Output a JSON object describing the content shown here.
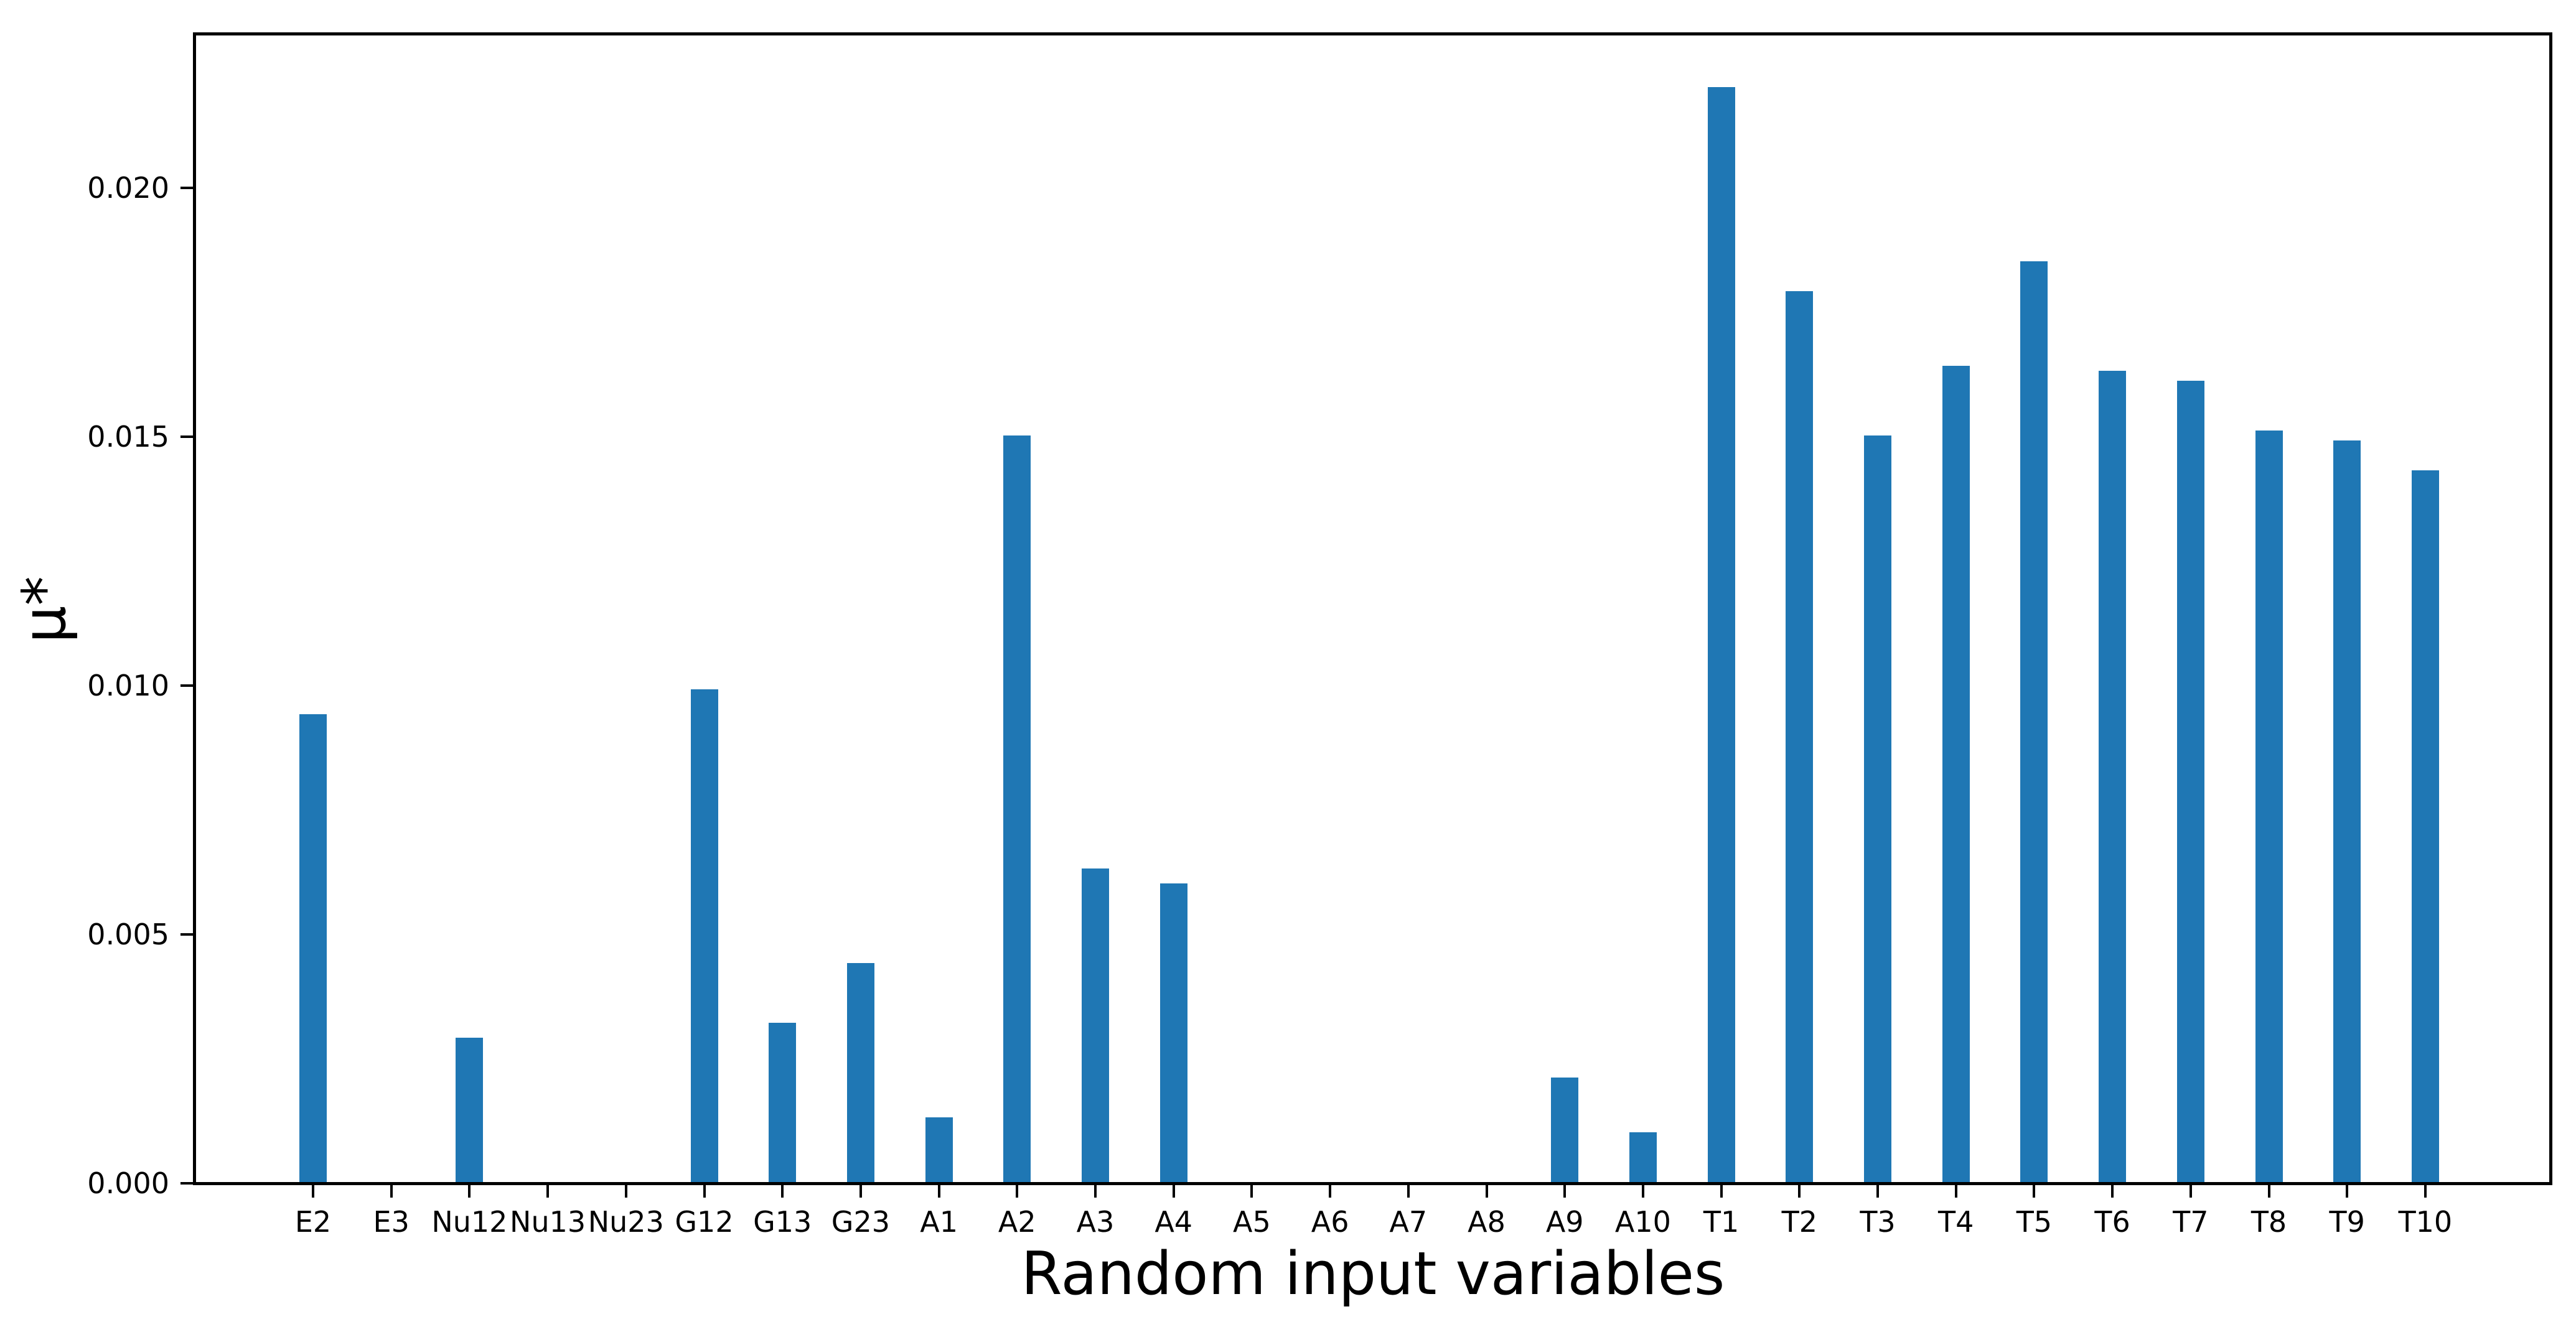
{
  "chart_data": {
    "type": "bar",
    "title": "",
    "xlabel": "Random input variables",
    "ylabel": "μ*",
    "categories": [
      "E2",
      "E3",
      "Nu12",
      "Nu13",
      "Nu23",
      "G12",
      "G13",
      "G23",
      "A1",
      "A2",
      "A3",
      "A4",
      "A5",
      "A6",
      "A7",
      "A8",
      "A9",
      "A10",
      "T1",
      "T2",
      "T3",
      "T4",
      "T5",
      "T6",
      "T7",
      "T8",
      "T9",
      "T10"
    ],
    "values": [
      0.0094,
      0,
      0.0029,
      0,
      0,
      0.0099,
      0.0032,
      0.0044,
      0.0013,
      0.015,
      0.0063,
      0.006,
      0,
      0,
      0,
      0,
      0.0021,
      0.001,
      0.022,
      0.0179,
      0.015,
      0.0164,
      0.0185,
      0.0163,
      0.0161,
      0.0151,
      0.0149,
      0.0143
    ],
    "y_ticks": [
      0,
      0.005,
      0.01,
      0.015,
      0.02
    ],
    "y_tick_labels": [
      "0.000",
      "0.005",
      "0.010",
      "0.015",
      "0.020"
    ],
    "ylim": [
      0,
      0.0231
    ],
    "grid": false,
    "legend": "none",
    "bar_color": "#1f77b4",
    "spine_color": "#000000",
    "text_color": "#000000"
  }
}
